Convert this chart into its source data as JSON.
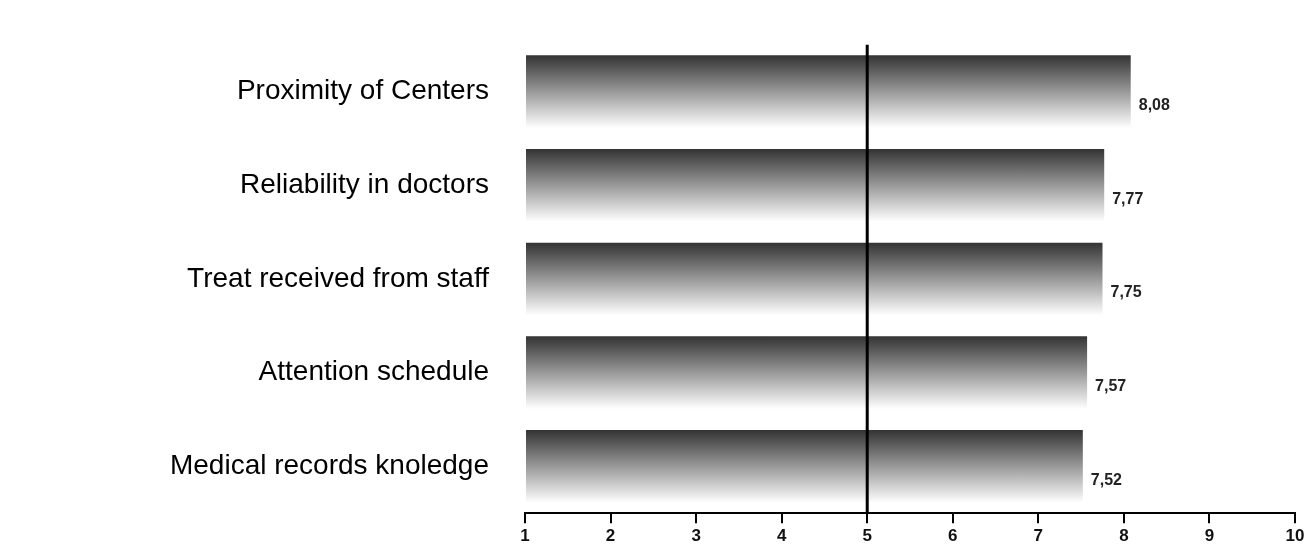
{
  "chart_data": {
    "type": "bar",
    "orientation": "horizontal",
    "categories": [
      "Proximity of Centers",
      "Reliability in doctors",
      "Treat received from staff",
      "Attention schedule",
      "Medical records knoledge"
    ],
    "values": [
      8.08,
      7.77,
      7.75,
      7.57,
      7.52
    ],
    "value_labels": [
      "8,08",
      "7,77",
      "7,75",
      "7,57",
      "7,52"
    ],
    "color": "#333333",
    "xlim": [
      1,
      10
    ],
    "xticks": [
      1,
      2,
      3,
      4,
      5,
      6,
      7,
      8,
      9,
      10
    ],
    "ref_lines": [
      {
        "axis": "x",
        "value": 5,
        "color": "#000000"
      }
    ],
    "grid": false,
    "legend": false
  }
}
